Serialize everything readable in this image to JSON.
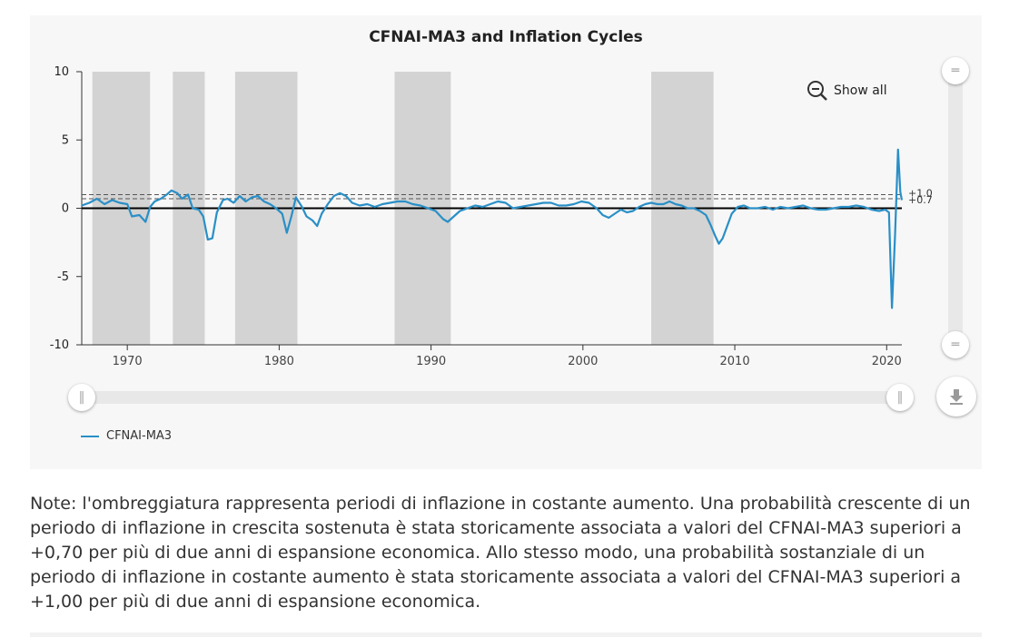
{
  "page": {
    "note": "Note: l'ombreggiatura rappresenta periodi di inflazione in costante aumento. Una probabilità crescente di un periodo di inflazione in crescita sostenuta è stata storicamente associata a valori del CFNAI-MA3 superiori a +0,70 per più di due anni di espansione economica. Allo stesso modo, una probabilità sostanziale di un periodo di inflazione in costante aumento è stata storicamente associata a valori del CFNAI-MA3 superiori a +1,00 per più di due anni di espansione economica."
  },
  "controls": {
    "show_all_label": "Show all",
    "zoom_icon": "zoom-out-icon",
    "download_icon": "download-icon"
  },
  "colors": {
    "series": "#2a8fc7",
    "shade": "#d3d3d3",
    "zero_line": "#000000",
    "threshold": "#555555",
    "panel": "#f7f7f7"
  },
  "chart_data": {
    "type": "line",
    "title": "CFNAI-MA3 and Inflation Cycles",
    "xlim": [
      1967.0,
      2021.0
    ],
    "ylim": [
      -10,
      10
    ],
    "y_ticks": [
      10,
      5,
      0,
      -5,
      -10
    ],
    "x_ticks": [
      1970,
      1980,
      1990,
      2000,
      2010,
      2020
    ],
    "grid": false,
    "legend_position": "bottom-left",
    "shaded_periods": [
      [
        1967.7,
        1971.5
      ],
      [
        1973.0,
        1975.1
      ],
      [
        1977.1,
        1981.2
      ],
      [
        1987.6,
        1991.3
      ],
      [
        2004.5,
        2008.6
      ]
    ],
    "threshold_lines": [
      {
        "value": 1.0,
        "label": "+1.0"
      },
      {
        "value": 0.7,
        "label": "+0.7"
      }
    ],
    "series": [
      {
        "name": "CFNAI-MA3",
        "points": [
          [
            1967.0,
            0.2
          ],
          [
            1967.5,
            0.4
          ],
          [
            1968.0,
            0.7
          ],
          [
            1968.5,
            0.3
          ],
          [
            1969.0,
            0.6
          ],
          [
            1969.5,
            0.4
          ],
          [
            1970.0,
            0.3
          ],
          [
            1970.3,
            -0.6
          ],
          [
            1970.8,
            -0.5
          ],
          [
            1971.2,
            -1.0
          ],
          [
            1971.5,
            0.1
          ],
          [
            1971.8,
            0.5
          ],
          [
            1972.2,
            0.7
          ],
          [
            1972.6,
            1.0
          ],
          [
            1972.9,
            1.3
          ],
          [
            1973.3,
            1.1
          ],
          [
            1973.6,
            0.7
          ],
          [
            1974.0,
            1.0
          ],
          [
            1974.3,
            0.0
          ],
          [
            1974.7,
            -0.1
          ],
          [
            1975.0,
            -0.6
          ],
          [
            1975.3,
            -2.3
          ],
          [
            1975.6,
            -2.2
          ],
          [
            1975.9,
            -0.3
          ],
          [
            1976.3,
            0.6
          ],
          [
            1976.6,
            0.7
          ],
          [
            1977.0,
            0.4
          ],
          [
            1977.4,
            0.9
          ],
          [
            1977.8,
            0.5
          ],
          [
            1978.2,
            0.8
          ],
          [
            1978.6,
            0.9
          ],
          [
            1979.0,
            0.5
          ],
          [
            1979.4,
            0.3
          ],
          [
            1979.8,
            0.0
          ],
          [
            1980.2,
            -0.4
          ],
          [
            1980.5,
            -1.8
          ],
          [
            1980.8,
            -0.6
          ],
          [
            1981.1,
            0.8
          ],
          [
            1981.5,
            0.1
          ],
          [
            1981.8,
            -0.6
          ],
          [
            1982.2,
            -0.9
          ],
          [
            1982.5,
            -1.3
          ],
          [
            1982.8,
            -0.4
          ],
          [
            1983.2,
            0.3
          ],
          [
            1983.6,
            0.9
          ],
          [
            1984.0,
            1.1
          ],
          [
            1984.4,
            0.9
          ],
          [
            1984.8,
            0.4
          ],
          [
            1985.3,
            0.2
          ],
          [
            1985.8,
            0.3
          ],
          [
            1986.3,
            0.1
          ],
          [
            1986.8,
            0.3
          ],
          [
            1987.3,
            0.4
          ],
          [
            1987.8,
            0.5
          ],
          [
            1988.3,
            0.5
          ],
          [
            1988.8,
            0.3
          ],
          [
            1989.3,
            0.2
          ],
          [
            1989.8,
            0.0
          ],
          [
            1990.3,
            -0.2
          ],
          [
            1990.8,
            -0.8
          ],
          [
            1991.1,
            -1.0
          ],
          [
            1991.5,
            -0.6
          ],
          [
            1991.9,
            -0.2
          ],
          [
            1992.4,
            0.0
          ],
          [
            1992.9,
            0.2
          ],
          [
            1993.4,
            0.1
          ],
          [
            1993.9,
            0.3
          ],
          [
            1994.4,
            0.5
          ],
          [
            1994.9,
            0.4
          ],
          [
            1995.4,
            0.0
          ],
          [
            1995.9,
            0.1
          ],
          [
            1996.4,
            0.2
          ],
          [
            1996.9,
            0.3
          ],
          [
            1997.4,
            0.4
          ],
          [
            1997.9,
            0.4
          ],
          [
            1998.4,
            0.2
          ],
          [
            1998.9,
            0.2
          ],
          [
            1999.4,
            0.3
          ],
          [
            1999.9,
            0.5
          ],
          [
            2000.4,
            0.4
          ],
          [
            2000.9,
            0.0
          ],
          [
            2001.3,
            -0.5
          ],
          [
            2001.7,
            -0.7
          ],
          [
            2002.1,
            -0.4
          ],
          [
            2002.5,
            -0.1
          ],
          [
            2002.9,
            -0.3
          ],
          [
            2003.3,
            -0.2
          ],
          [
            2003.7,
            0.1
          ],
          [
            2004.1,
            0.3
          ],
          [
            2004.5,
            0.4
          ],
          [
            2004.9,
            0.3
          ],
          [
            2005.3,
            0.3
          ],
          [
            2005.7,
            0.5
          ],
          [
            2006.1,
            0.3
          ],
          [
            2006.5,
            0.2
          ],
          [
            2006.9,
            0.0
          ],
          [
            2007.3,
            0.0
          ],
          [
            2007.7,
            -0.2
          ],
          [
            2008.1,
            -0.5
          ],
          [
            2008.4,
            -1.2
          ],
          [
            2008.7,
            -2.0
          ],
          [
            2008.95,
            -2.6
          ],
          [
            2009.2,
            -2.2
          ],
          [
            2009.5,
            -1.3
          ],
          [
            2009.8,
            -0.4
          ],
          [
            2010.2,
            0.1
          ],
          [
            2010.6,
            0.2
          ],
          [
            2011.0,
            0.0
          ],
          [
            2011.5,
            0.0
          ],
          [
            2012.0,
            0.1
          ],
          [
            2012.5,
            -0.1
          ],
          [
            2013.0,
            0.1
          ],
          [
            2013.5,
            0.0
          ],
          [
            2014.0,
            0.1
          ],
          [
            2014.5,
            0.2
          ],
          [
            2015.0,
            0.0
          ],
          [
            2015.5,
            -0.1
          ],
          [
            2016.0,
            -0.1
          ],
          [
            2016.5,
            0.0
          ],
          [
            2017.0,
            0.1
          ],
          [
            2017.5,
            0.1
          ],
          [
            2018.0,
            0.2
          ],
          [
            2018.5,
            0.1
          ],
          [
            2019.0,
            -0.1
          ],
          [
            2019.5,
            -0.2
          ],
          [
            2019.9,
            -0.1
          ],
          [
            2020.15,
            -0.3
          ],
          [
            2020.35,
            -7.3
          ],
          [
            2020.55,
            -2.0
          ],
          [
            2020.75,
            4.3
          ],
          [
            2020.9,
            1.2
          ],
          [
            2021.0,
            0.6
          ]
        ]
      }
    ]
  }
}
